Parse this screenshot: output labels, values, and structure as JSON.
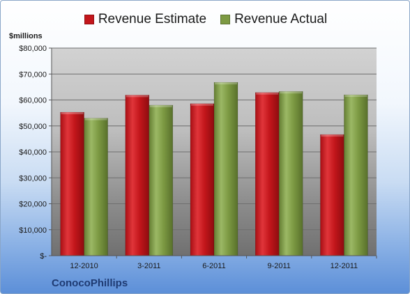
{
  "legend": {
    "estimate_label": "Revenue Estimate",
    "actual_label": "Revenue Actual"
  },
  "unit_label": "$millions",
  "company": "ConocoPhillips",
  "colors": {
    "estimate": "#c3161b",
    "actual": "#7d9a43"
  },
  "chart_data": {
    "type": "bar",
    "categories": [
      "12-2010",
      "3-2011",
      "6-2011",
      "9-2011",
      "12-2011"
    ],
    "series": [
      {
        "name": "Revenue Estimate",
        "values": [
          55300,
          61900,
          58600,
          62900,
          46700
        ]
      },
      {
        "name": "Revenue Actual",
        "values": [
          53000,
          58000,
          66800,
          63300,
          62000
        ]
      }
    ],
    "ylim": [
      0,
      80000
    ],
    "yticks": [
      0,
      10000,
      20000,
      30000,
      40000,
      50000,
      60000,
      70000,
      80000
    ],
    "ytick_labels": [
      "$-",
      "$10,000",
      "$20,000",
      "$30,000",
      "$40,000",
      "$50,000",
      "$60,000",
      "$70,000",
      "$80,000"
    ],
    "ylabel": "$millions",
    "grid": true,
    "legend_position": "top"
  }
}
